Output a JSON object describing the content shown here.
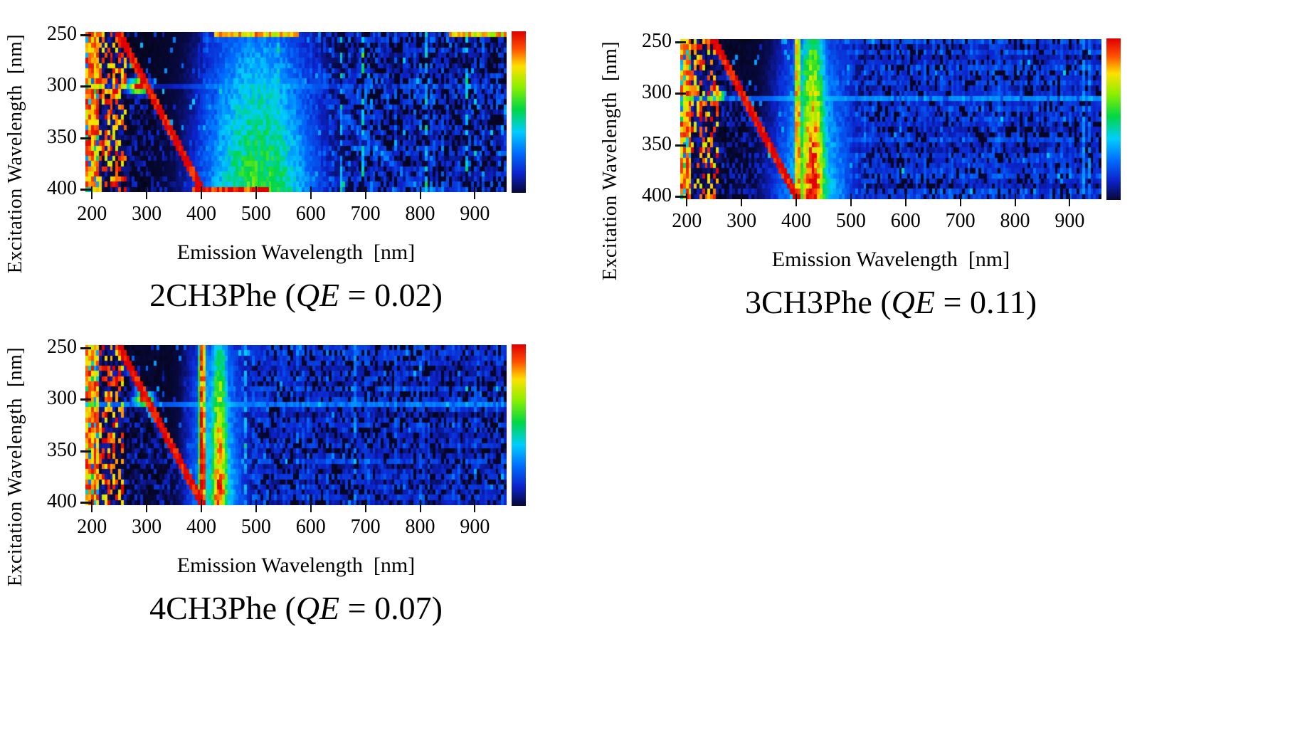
{
  "figure": {
    "background": "#ffffff"
  },
  "chart_data": {
    "type": "heatmap",
    "description": "Excitation-emission matrices (EEM) of three methylphenanthrene isomers with quantum efficiencies",
    "colormap_stops": [
      [
        0.0,
        [
          4,
          4,
          20
        ]
      ],
      [
        0.08,
        [
          8,
          10,
          70
        ]
      ],
      [
        0.18,
        [
          12,
          35,
          205
        ]
      ],
      [
        0.3,
        [
          0,
          110,
          255
        ]
      ],
      [
        0.42,
        [
          0,
          205,
          255
        ]
      ],
      [
        0.55,
        [
          0,
          215,
          70
        ]
      ],
      [
        0.68,
        [
          140,
          240,
          0
        ]
      ],
      [
        0.8,
        [
          255,
          225,
          0
        ]
      ],
      [
        0.9,
        [
          255,
          80,
          0
        ]
      ],
      [
        1.0,
        [
          225,
          0,
          0
        ]
      ]
    ],
    "panels": [
      {
        "name": "2CH3Phe",
        "qe": 0.02,
        "title_pre": "2CH3Phe (",
        "title_qe": "QE",
        "title_post": " = 0.02)",
        "xlabel": "Emission Wavelength  [nm]",
        "ylabel": "Excitation Wavelength  [nm]",
        "x_axis": {
          "min": 188,
          "max": 958,
          "ticks": [
            200,
            300,
            400,
            500,
            600,
            700,
            800,
            900
          ]
        },
        "y_axis": {
          "min": 247.5,
          "max": 402.5,
          "ticks": [
            250,
            300,
            350,
            400
          ]
        },
        "em_step": 5,
        "ex_step": 5,
        "seed": 11,
        "model": {
          "noise": {
            "base": 0.1,
            "spread": 0.26,
            "dropout": 0.33,
            "hot_col_chance": 0.05,
            "hot_col_boost": 0.3,
            "speckle_chance": 0.03,
            "speckle_add": 0.25
          },
          "left_red_band": {
            "em_max": 212,
            "amp": 0.92
          },
          "left_noise": {
            "em_max": 262,
            "hot_chance": 0.45,
            "hot_amp": 0.95,
            "low_amp": 0.1
          },
          "rayleigh": {
            "width": 8,
            "amp": 1.0
          },
          "dark_band": {
            "em_to": 392,
            "level": 0.03,
            "speckle_chance": 0.07,
            "speckle_amp": 0.3
          },
          "peaks": [
            {
              "center": 505,
              "sigma": 80,
              "amp": 0.62,
              "amp_top": 0.3,
              "ex_min": 250,
              "ex_max": 400
            }
          ],
          "blobs": [
            {
              "em": 285,
              "ex": 300,
              "em_sigma": 16,
              "ex_sigma": 5,
              "amp": 1.0
            }
          ],
          "hot_rows": [
            {
              "ex": 400,
              "em_min": 385,
              "em_max": 525,
              "amp": 1.0
            },
            {
              "ex": 250,
              "em_min": 425,
              "em_max": 580,
              "amp": 0.85
            },
            {
              "ex": 250,
              "em_min": 855,
              "em_max": 958,
              "amp": 0.8
            }
          ],
          "light_rows": [
            {
              "ex": 300,
              "mix": 0.25
            }
          ],
          "second_order": {
            "amp": 0.3,
            "width": 10
          }
        }
      },
      {
        "name": "3CH3Phe",
        "qe": 0.11,
        "title_pre": "3CH3Phe (",
        "title_qe": "QE",
        "title_post": " = 0.11)",
        "xlabel": "Emission Wavelength  [nm]",
        "ylabel": "Excitation Wavelength  [nm]",
        "x_axis": {
          "min": 188,
          "max": 958,
          "ticks": [
            200,
            300,
            400,
            500,
            600,
            700,
            800,
            900
          ]
        },
        "y_axis": {
          "min": 247.5,
          "max": 402.5,
          "ticks": [
            250,
            300,
            350,
            400
          ]
        },
        "em_step": 5,
        "ex_step": 5,
        "seed": 22,
        "model": {
          "noise": {
            "base": 0.14,
            "spread": 0.2,
            "dropout": 0.22,
            "hot_col_chance": 0.04,
            "hot_col_boost": 0.22,
            "speckle_chance": 0.02,
            "speckle_add": 0.2
          },
          "left_red_band": {
            "em_max": 210,
            "amp": 0.92
          },
          "left_noise": {
            "em_max": 258,
            "hot_chance": 0.45,
            "hot_amp": 0.95,
            "low_amp": 0.1
          },
          "rayleigh": {
            "width": 8,
            "amp": 1.0
          },
          "dark_band": {
            "em_to": 393,
            "level": 0.04,
            "speckle_chance": 0.06,
            "speckle_amp": 0.28
          },
          "peaks": [
            {
              "center": 403,
              "sigma": 5,
              "amp": 0.95,
              "amp_top": 0.88,
              "ex_min": 250,
              "ex_max": 400
            },
            {
              "center": 430,
              "sigma": 20,
              "amp": 1.05,
              "amp_top": 0.55,
              "ex_min": 250,
              "ex_max": 400
            },
            {
              "center": 432,
              "sigma": 55,
              "amp": 0.5,
              "amp_top": 0.28,
              "ex_min": 250,
              "ex_max": 400
            }
          ],
          "blobs": [
            {
              "em": 258,
              "ex": 302,
              "em_sigma": 9,
              "ex_sigma": 4,
              "amp": 0.9
            }
          ],
          "hot_rows": [],
          "light_rows": [
            {
              "ex": 303,
              "mix": 0.45
            }
          ],
          "second_order": {
            "amp": 0.2,
            "width": 10
          }
        }
      },
      {
        "name": "4CH3Phe",
        "qe": 0.07,
        "title_pre": "4CH3Phe (",
        "title_qe": "QE",
        "title_post": " = 0.07)",
        "xlabel": "Emission Wavelength  [nm]",
        "ylabel": "Excitation Wavelength  [nm]",
        "x_axis": {
          "min": 188,
          "max": 958,
          "ticks": [
            200,
            300,
            400,
            500,
            600,
            700,
            800,
            900
          ]
        },
        "y_axis": {
          "min": 247.5,
          "max": 402.5,
          "ticks": [
            250,
            300,
            350,
            400
          ]
        },
        "em_step": 5,
        "ex_step": 5,
        "seed": 33,
        "model": {
          "noise": {
            "base": 0.13,
            "spread": 0.21,
            "dropout": 0.24,
            "hot_col_chance": 0.04,
            "hot_col_boost": 0.24,
            "speckle_chance": 0.02,
            "speckle_add": 0.22
          },
          "left_red_band": {
            "em_max": 211,
            "amp": 0.92
          },
          "left_noise": {
            "em_max": 260,
            "hot_chance": 0.45,
            "hot_amp": 0.95,
            "low_amp": 0.1
          },
          "rayleigh": {
            "width": 8,
            "amp": 1.0
          },
          "dark_band": {
            "em_to": 394,
            "level": 0.04,
            "speckle_chance": 0.06,
            "speckle_amp": 0.28
          },
          "peaks": [
            {
              "center": 402,
              "sigma": 6,
              "amp": 1.05,
              "amp_top": 0.95,
              "ex_min": 250,
              "ex_max": 400
            },
            {
              "center": 433,
              "sigma": 13,
              "amp": 1.0,
              "amp_top": 0.5,
              "ex_min": 250,
              "ex_max": 400
            },
            {
              "center": 428,
              "sigma": 40,
              "amp": 0.5,
              "amp_top": 0.3,
              "ex_min": 250,
              "ex_max": 400
            }
          ],
          "blobs": [
            {
              "em": 295,
              "ex": 300,
              "em_sigma": 13,
              "ex_sigma": 5,
              "amp": 1.0
            }
          ],
          "hot_rows": [],
          "light_rows": [
            {
              "ex": 303,
              "mix": 0.5
            }
          ],
          "second_order": {
            "amp": 0.2,
            "width": 9
          }
        }
      }
    ]
  }
}
